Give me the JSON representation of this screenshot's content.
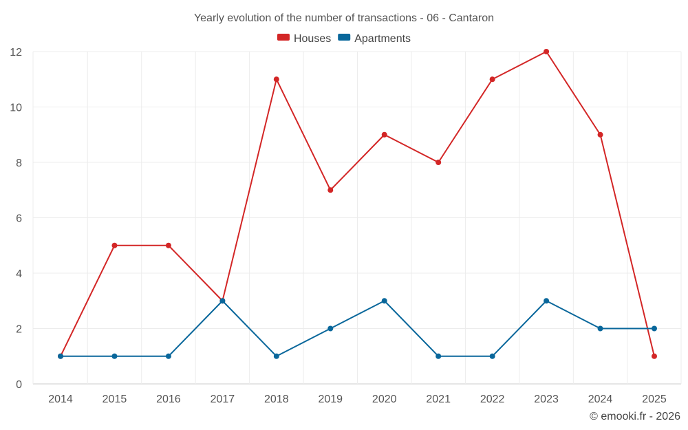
{
  "chart_data": {
    "type": "line",
    "title": "Yearly evolution of the number of transactions - 06 - Cantaron",
    "xlabel": "",
    "ylabel": "",
    "categories": [
      "2014",
      "2015",
      "2016",
      "2017",
      "2018",
      "2019",
      "2020",
      "2021",
      "2022",
      "2023",
      "2024",
      "2025"
    ],
    "ylim": [
      0,
      12
    ],
    "yticks": [
      0,
      2,
      4,
      6,
      8,
      10,
      12
    ],
    "grid": true,
    "legend_position": "top-center",
    "series": [
      {
        "name": "Houses",
        "color": "#d32626",
        "values": [
          1,
          5,
          5,
          3,
          11,
          7,
          9,
          8,
          11,
          12,
          9,
          1
        ]
      },
      {
        "name": "Apartments",
        "color": "#09679b",
        "values": [
          1,
          1,
          1,
          3,
          1,
          2,
          3,
          1,
          1,
          3,
          2,
          2
        ]
      }
    ]
  },
  "credit": "© emooki.fr - 2026"
}
